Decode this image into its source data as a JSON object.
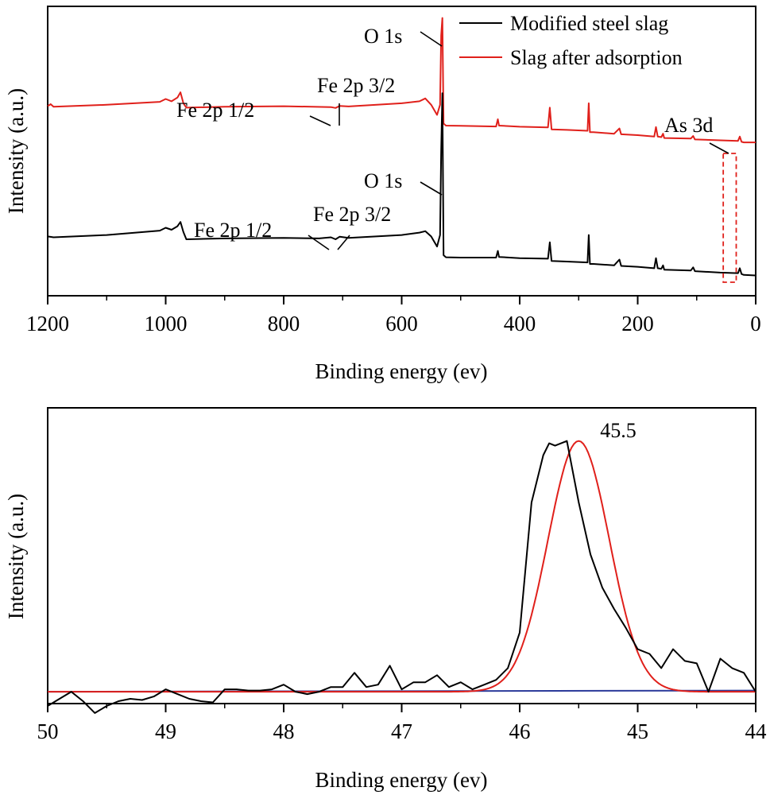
{
  "colors": {
    "modified": "#000000",
    "adsorbed": "#e0201b",
    "fit": "#e0201b",
    "baseline": "#2b3a9a",
    "box": "#e0201b"
  },
  "chart_data": [
    {
      "type": "line",
      "title": "",
      "xlabel": "Binding energy (ev)",
      "ylabel": "Intensity (a.u.)",
      "xlim": [
        1200,
        0
      ],
      "ylim": [
        0,
        100
      ],
      "xticks": [
        1200,
        1000,
        800,
        600,
        400,
        200,
        0
      ],
      "legend": {
        "placement": "top-right",
        "entries": [
          "Modified steel slag",
          "Slag after adsorption"
        ]
      },
      "series": [
        {
          "name": "Modified steel slag",
          "color": "#000000",
          "x": [
            1200,
            1190,
            1100,
            1010,
            1000,
            990,
            980,
            975,
            970,
            965,
            900,
            800,
            740,
            720,
            712,
            705,
            690,
            600,
            570,
            560,
            550,
            540,
            535,
            533,
            531,
            529,
            525,
            500,
            440,
            437,
            435,
            400,
            352,
            349,
            346,
            320,
            285,
            283,
            281,
            275,
            240,
            231,
            228,
            200,
            172,
            169,
            166,
            160,
            157,
            155,
            110,
            106,
            103,
            60,
            30,
            27,
            24,
            20,
            0
          ],
          "y": [
            20.5,
            20.2,
            21.0,
            22.5,
            23.5,
            22.8,
            24.0,
            25.5,
            22.0,
            19.5,
            19.8,
            20.0,
            19.8,
            20.2,
            19.5,
            20.4,
            20.0,
            21.0,
            21.8,
            22.3,
            20.5,
            17.0,
            21.0,
            50.0,
            70.0,
            14.0,
            13.3,
            13.2,
            13.2,
            15.5,
            13.4,
            13.0,
            12.8,
            18.5,
            12.0,
            11.8,
            11.5,
            21.0,
            11.0,
            11.0,
            10.5,
            12.5,
            10.3,
            10.0,
            9.5,
            13.0,
            9.5,
            9.3,
            10.5,
            9.0,
            8.7,
            9.8,
            8.5,
            8.0,
            7.8,
            9.5,
            7.5,
            7.2,
            7.0
          ]
        },
        {
          "name": "Slag after adsorption",
          "color": "#e0201b",
          "x": [
            1200,
            1195,
            1190,
            1100,
            1010,
            1000,
            990,
            980,
            975,
            970,
            965,
            900,
            800,
            720,
            712,
            705,
            690,
            600,
            570,
            560,
            550,
            540,
            535,
            533,
            531,
            529,
            525,
            500,
            440,
            437,
            435,
            400,
            352,
            349,
            346,
            320,
            285,
            283,
            281,
            275,
            240,
            231,
            228,
            200,
            172,
            169,
            166,
            160,
            157,
            155,
            110,
            106,
            103,
            60,
            30,
            27,
            24,
            20,
            0
          ],
          "y": [
            65.5,
            66.2,
            65.3,
            66.0,
            67.0,
            68.0,
            67.2,
            68.5,
            70.3,
            66.5,
            65.0,
            65.3,
            65.5,
            65.2,
            64.9,
            65.6,
            65.4,
            66.5,
            67.2,
            68.2,
            66.0,
            62.5,
            66.0,
            90.0,
            96.0,
            59.5,
            58.8,
            58.7,
            58.5,
            61.0,
            58.8,
            58.4,
            58.2,
            65.0,
            57.5,
            57.3,
            57.0,
            66.5,
            56.5,
            56.5,
            56.0,
            57.8,
            55.8,
            55.5,
            55.0,
            58.3,
            55.0,
            54.8,
            56.0,
            54.5,
            54.3,
            55.2,
            54.0,
            53.7,
            53.5,
            55.0,
            53.2,
            53.0,
            53.0
          ]
        }
      ],
      "annotations": [
        {
          "text": "O 1s",
          "x": 531,
          "series": "Slag after adsorption"
        },
        {
          "text": "Fe 2p 1/2",
          "x": 720,
          "series": "Slag after adsorption"
        },
        {
          "text": "Fe 2p 3/2",
          "x": 705,
          "series": "Slag after adsorption"
        },
        {
          "text": "O 1s",
          "x": 531,
          "series": "Modified steel slag"
        },
        {
          "text": "Fe 2p 1/2",
          "x": 720,
          "series": "Modified steel slag"
        },
        {
          "text": "Fe 2p 3/2",
          "x": 712,
          "series": "Modified steel slag"
        },
        {
          "text": "As 3d",
          "x": 45,
          "series": "Slag after adsorption"
        }
      ],
      "highlight_box": {
        "x_from": 55,
        "x_to": 33
      }
    },
    {
      "type": "line",
      "title": "",
      "xlabel": "Binding energy (ev)",
      "ylabel": "Intensity (a.u.)",
      "xlim": [
        50,
        44
      ],
      "ylim": [
        -5,
        120
      ],
      "xticks": [
        50,
        49,
        48,
        47,
        46,
        45,
        44
      ],
      "series": [
        {
          "name": "As 3d spectrum",
          "color": "#000000",
          "x": [
            50.0,
            49.9,
            49.8,
            49.7,
            49.6,
            49.5,
            49.4,
            49.3,
            49.2,
            49.1,
            49.0,
            48.9,
            48.8,
            48.7,
            48.6,
            48.5,
            48.4,
            48.3,
            48.2,
            48.1,
            48.0,
            47.9,
            47.8,
            47.7,
            47.6,
            47.5,
            47.4,
            47.3,
            47.2,
            47.1,
            47.0,
            46.9,
            46.8,
            46.7,
            46.6,
            46.5,
            46.4,
            46.3,
            46.2,
            46.1,
            46.0,
            45.9,
            45.8,
            45.75,
            45.7,
            45.6,
            45.5,
            45.4,
            45.3,
            45.2,
            45.1,
            45.0,
            44.9,
            44.8,
            44.7,
            44.6,
            44.5,
            44.4,
            44.3,
            44.2,
            44.1,
            44.0
          ],
          "y": [
            -6,
            -3,
            0,
            -4,
            -9,
            -6,
            -4,
            -3,
            -3.5,
            -2,
            1,
            -1,
            -3,
            -4,
            -4.5,
            1,
            1,
            0.5,
            0.5,
            1,
            3,
            0,
            -1,
            0,
            2,
            2,
            8,
            2,
            3,
            11,
            1,
            4,
            4,
            7,
            2,
            4,
            1,
            3,
            5,
            10,
            25,
            80,
            100,
            105,
            104,
            106,
            80,
            58,
            44,
            35,
            27,
            18,
            16,
            10,
            18,
            13,
            12,
            0,
            14,
            10,
            8,
            0
          ]
        },
        {
          "name": "Fitted peak",
          "color": "#e0201b",
          "type": "gaussian",
          "center": 45.5,
          "amplitude": 106,
          "sigma": 0.26,
          "baseline": 0,
          "x_range": [
            50,
            44
          ]
        },
        {
          "name": "Baseline",
          "color": "#2b3a9a",
          "x": [
            50,
            44
          ],
          "y": [
            0,
            0.5
          ]
        }
      ],
      "annotations": [
        {
          "text": "45.5",
          "x": 45.5
        }
      ]
    }
  ]
}
